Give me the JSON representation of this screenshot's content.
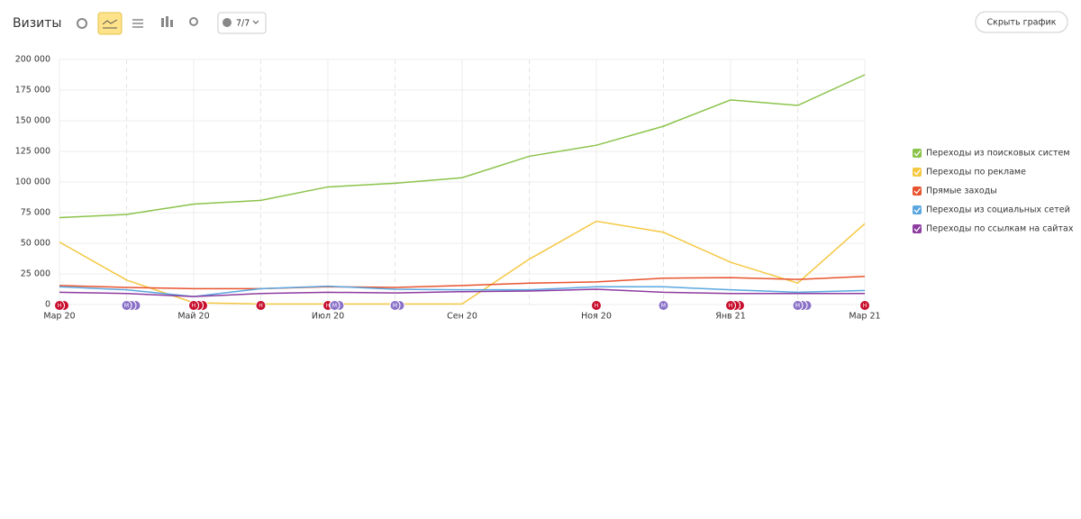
{
  "toolbar": {
    "title": "Визиты",
    "comments": "7/7",
    "hide": "Скрыть график"
  },
  "chart_data": {
    "type": "line",
    "categories": [
      "Мар 20",
      null,
      "Май 20",
      null,
      "Июл 20",
      null,
      "Сен 20",
      null,
      "Ноя 20",
      null,
      "Янв 21",
      null,
      "Мар 21"
    ],
    "ylim": [
      0,
      200000
    ],
    "yticks": [
      0,
      {
        "value": 25000,
        "label": "25 000"
      },
      {
        "value": 50000,
        "label": "50 000"
      },
      {
        "value": 75000,
        "label": "75 000"
      },
      {
        "value": 100000,
        "label": "100 000"
      },
      {
        "value": 125000,
        "label": "125 000"
      },
      {
        "value": 150000,
        "label": "150 000"
      },
      {
        "value": 175000,
        "label": "175 000"
      },
      {
        "value": 200000,
        "label": "200 000"
      }
    ],
    "grid": true,
    "series": [
      {
        "name": "Переходы из поисковых систем",
        "color": "#8bc34a",
        "values": [
          71000,
          73500,
          82000,
          85000,
          96000,
          99000,
          103500,
          121000,
          130000,
          145500,
          167000,
          162500,
          187500
        ]
      },
      {
        "name": "Переходы по рекламе",
        "color": "#f5c842",
        "values": [
          51000,
          20000,
          1500,
          500,
          500,
          500,
          500,
          37000,
          68000,
          59000,
          34500,
          17500,
          66000
        ]
      },
      {
        "name": "Прямые заходы",
        "color": "#e8532e",
        "values": [
          15500,
          14000,
          13000,
          13000,
          14500,
          14000,
          15500,
          17500,
          18500,
          21500,
          22000,
          20500,
          23000
        ]
      },
      {
        "name": "Переходы из социальных сетей",
        "color": "#5aa7e0",
        "values": [
          14500,
          12000,
          6500,
          13000,
          15000,
          12500,
          12000,
          12000,
          14500,
          14500,
          12000,
          10000,
          11500
        ]
      },
      {
        "name": "Переходы по ссылкам на сайтах",
        "color": "#8e3ca0",
        "values": [
          10000,
          9000,
          6500,
          9000,
          10000,
          9500,
          10500,
          11000,
          12500,
          10000,
          9000,
          9000,
          9000
        ]
      }
    ],
    "events": [
      {
        "label": "Н",
        "at": 0,
        "count": 2
      },
      {
        "label": "М",
        "at": 1,
        "count": 3
      },
      {
        "label": "Н",
        "at": 2,
        "count": 3
      },
      {
        "label": "Н",
        "at": 3,
        "count": 1
      },
      {
        "label": "Н",
        "at": 4,
        "count": 1
      },
      {
        "label": "М",
        "at": 4.1,
        "count": 2
      },
      {
        "label": "М",
        "at": 5,
        "count": 2
      },
      {
        "label": "Н",
        "at": 8,
        "count": 1
      },
      {
        "label": "М",
        "at": 9,
        "count": 1
      },
      {
        "label": "Н",
        "at": 10,
        "count": 3
      },
      {
        "label": "М",
        "at": 11,
        "count": 3
      },
      {
        "label": "Н",
        "at": 12,
        "count": 1
      }
    ]
  }
}
